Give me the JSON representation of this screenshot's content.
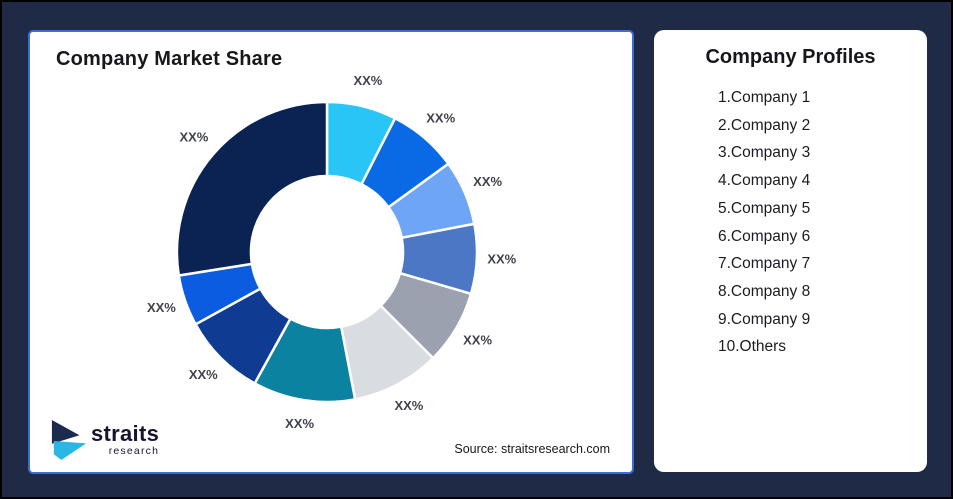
{
  "window": {
    "background_color": "#1E2A46",
    "frame_border_color": "#000000"
  },
  "market_share_card": {
    "title": "Company Market Share",
    "border_color": "#3E6CD8",
    "source_text": "Source: straitsresearch.com",
    "logo": {
      "brand": "straits",
      "brand_sub": "research",
      "mark_navy": "#1B2A4E",
      "mark_cyan": "#2BB7E5"
    }
  },
  "profiles_card": {
    "title": "Company Profiles",
    "items": [
      "1.Company 1",
      "2.Company 2",
      "3.Company 3",
      "4.Company 4",
      "5.Company 5",
      "6.Company 6",
      "7.Company 7",
      "8.Company 8",
      "9.Company 9",
      "10.Others"
    ]
  },
  "chart_data": {
    "type": "pie",
    "subtype": "donut",
    "title": "Company Market Share",
    "unit": "percent (data labels masked as XX% in source)",
    "slice_names": [
      "Company 1",
      "Company 2",
      "Company 3",
      "Company 4",
      "Company 5",
      "Company 6",
      "Company 7",
      "Company 8",
      "Company 9",
      "Others"
    ],
    "labels": [
      "XX%",
      "XX%",
      "XX%",
      "XX%",
      "XX%",
      "XX%",
      "XX%",
      "XX%",
      "XX%",
      "XX%"
    ],
    "values": [
      7.5,
      7.5,
      7,
      7.5,
      8,
      9.5,
      11,
      9,
      5.5,
      27.5
    ],
    "values_estimated_from_arc_angles": true,
    "colors": [
      "#29C5F6",
      "#0A6AE6",
      "#6EA6F5",
      "#4B77C5",
      "#9BA1AE",
      "#D9DCE1",
      "#0A82A0",
      "#0F3B92",
      "#0B5CE0",
      "#0B2353"
    ],
    "start_angle_deg": 0,
    "direction": "clockwise",
    "inner_radius_ratio": 0.5,
    "slice_gap_color": "#FFFFFF",
    "label_color": "#3E434B",
    "legend": "none"
  }
}
